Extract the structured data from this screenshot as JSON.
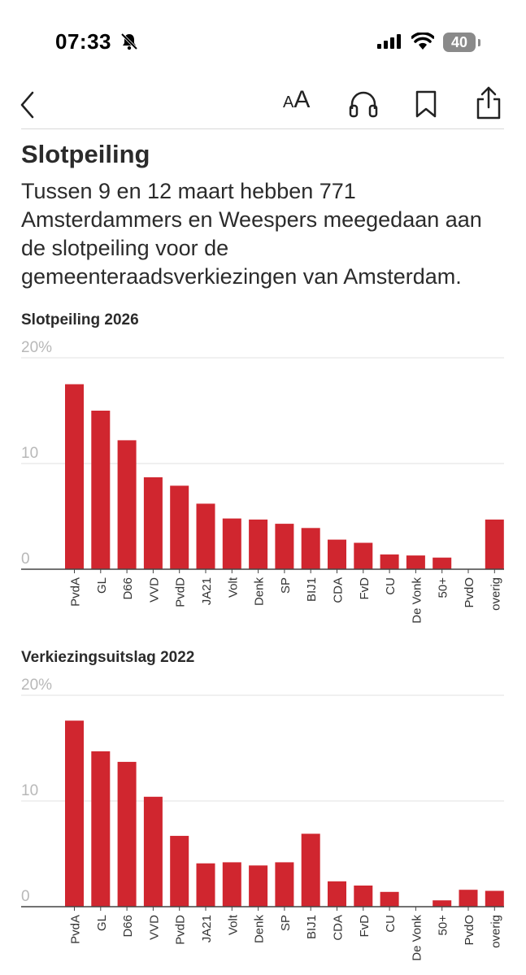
{
  "status_bar": {
    "time": "07:33",
    "battery": "40"
  },
  "toolbar": {
    "text_size_small": "A",
    "text_size_large": "A"
  },
  "article": {
    "title": "Slotpeiling",
    "intro": "Tussen 9 en 12 maart hebben 771 Amsterdammers en Weespers meegedaan aan de slotpeiling voor de gemeenteraadsverkiezingen van Amsterdam."
  },
  "colors": {
    "bar": "#d0262f",
    "grid": "#e2e2e2",
    "axis": "#444444",
    "tick": "#b8b8b8",
    "label": "#333333"
  },
  "chart_data": [
    {
      "type": "bar",
      "title": "Slotpeiling 2026",
      "categories": [
        "PvdA",
        "GL",
        "D66",
        "VVD",
        "PvdD",
        "JA21",
        "Volt",
        "Denk",
        "SP",
        "BIJ1",
        "CDA",
        "FvD",
        "CU",
        "De Vonk",
        "50+",
        "PvdO",
        "overig"
      ],
      "values": [
        17.5,
        15.0,
        12.2,
        8.7,
        7.9,
        6.2,
        4.8,
        4.7,
        4.3,
        3.9,
        2.8,
        2.5,
        1.4,
        1.3,
        1.1,
        0,
        4.7
      ],
      "ylim": [
        0,
        20
      ],
      "yticks": [
        "0",
        "10",
        "20%"
      ],
      "xlabel": "",
      "ylabel": ""
    },
    {
      "type": "bar",
      "title": "Verkiezingsuitslag 2022",
      "categories": [
        "PvdA",
        "GL",
        "D66",
        "VVD",
        "PvdD",
        "JA21",
        "Volt",
        "Denk",
        "SP",
        "BIJ1",
        "CDA",
        "FvD",
        "CU",
        "De Vonk",
        "50+",
        "PvdO",
        "overig"
      ],
      "values": [
        17.6,
        14.7,
        13.7,
        10.4,
        6.7,
        4.1,
        4.2,
        3.9,
        4.2,
        6.9,
        2.4,
        2.0,
        1.4,
        0,
        0.6,
        1.6,
        1.5
      ],
      "ylim": [
        0,
        20
      ],
      "yticks": [
        "0",
        "10",
        "20%"
      ],
      "xlabel": "",
      "ylabel": ""
    }
  ]
}
